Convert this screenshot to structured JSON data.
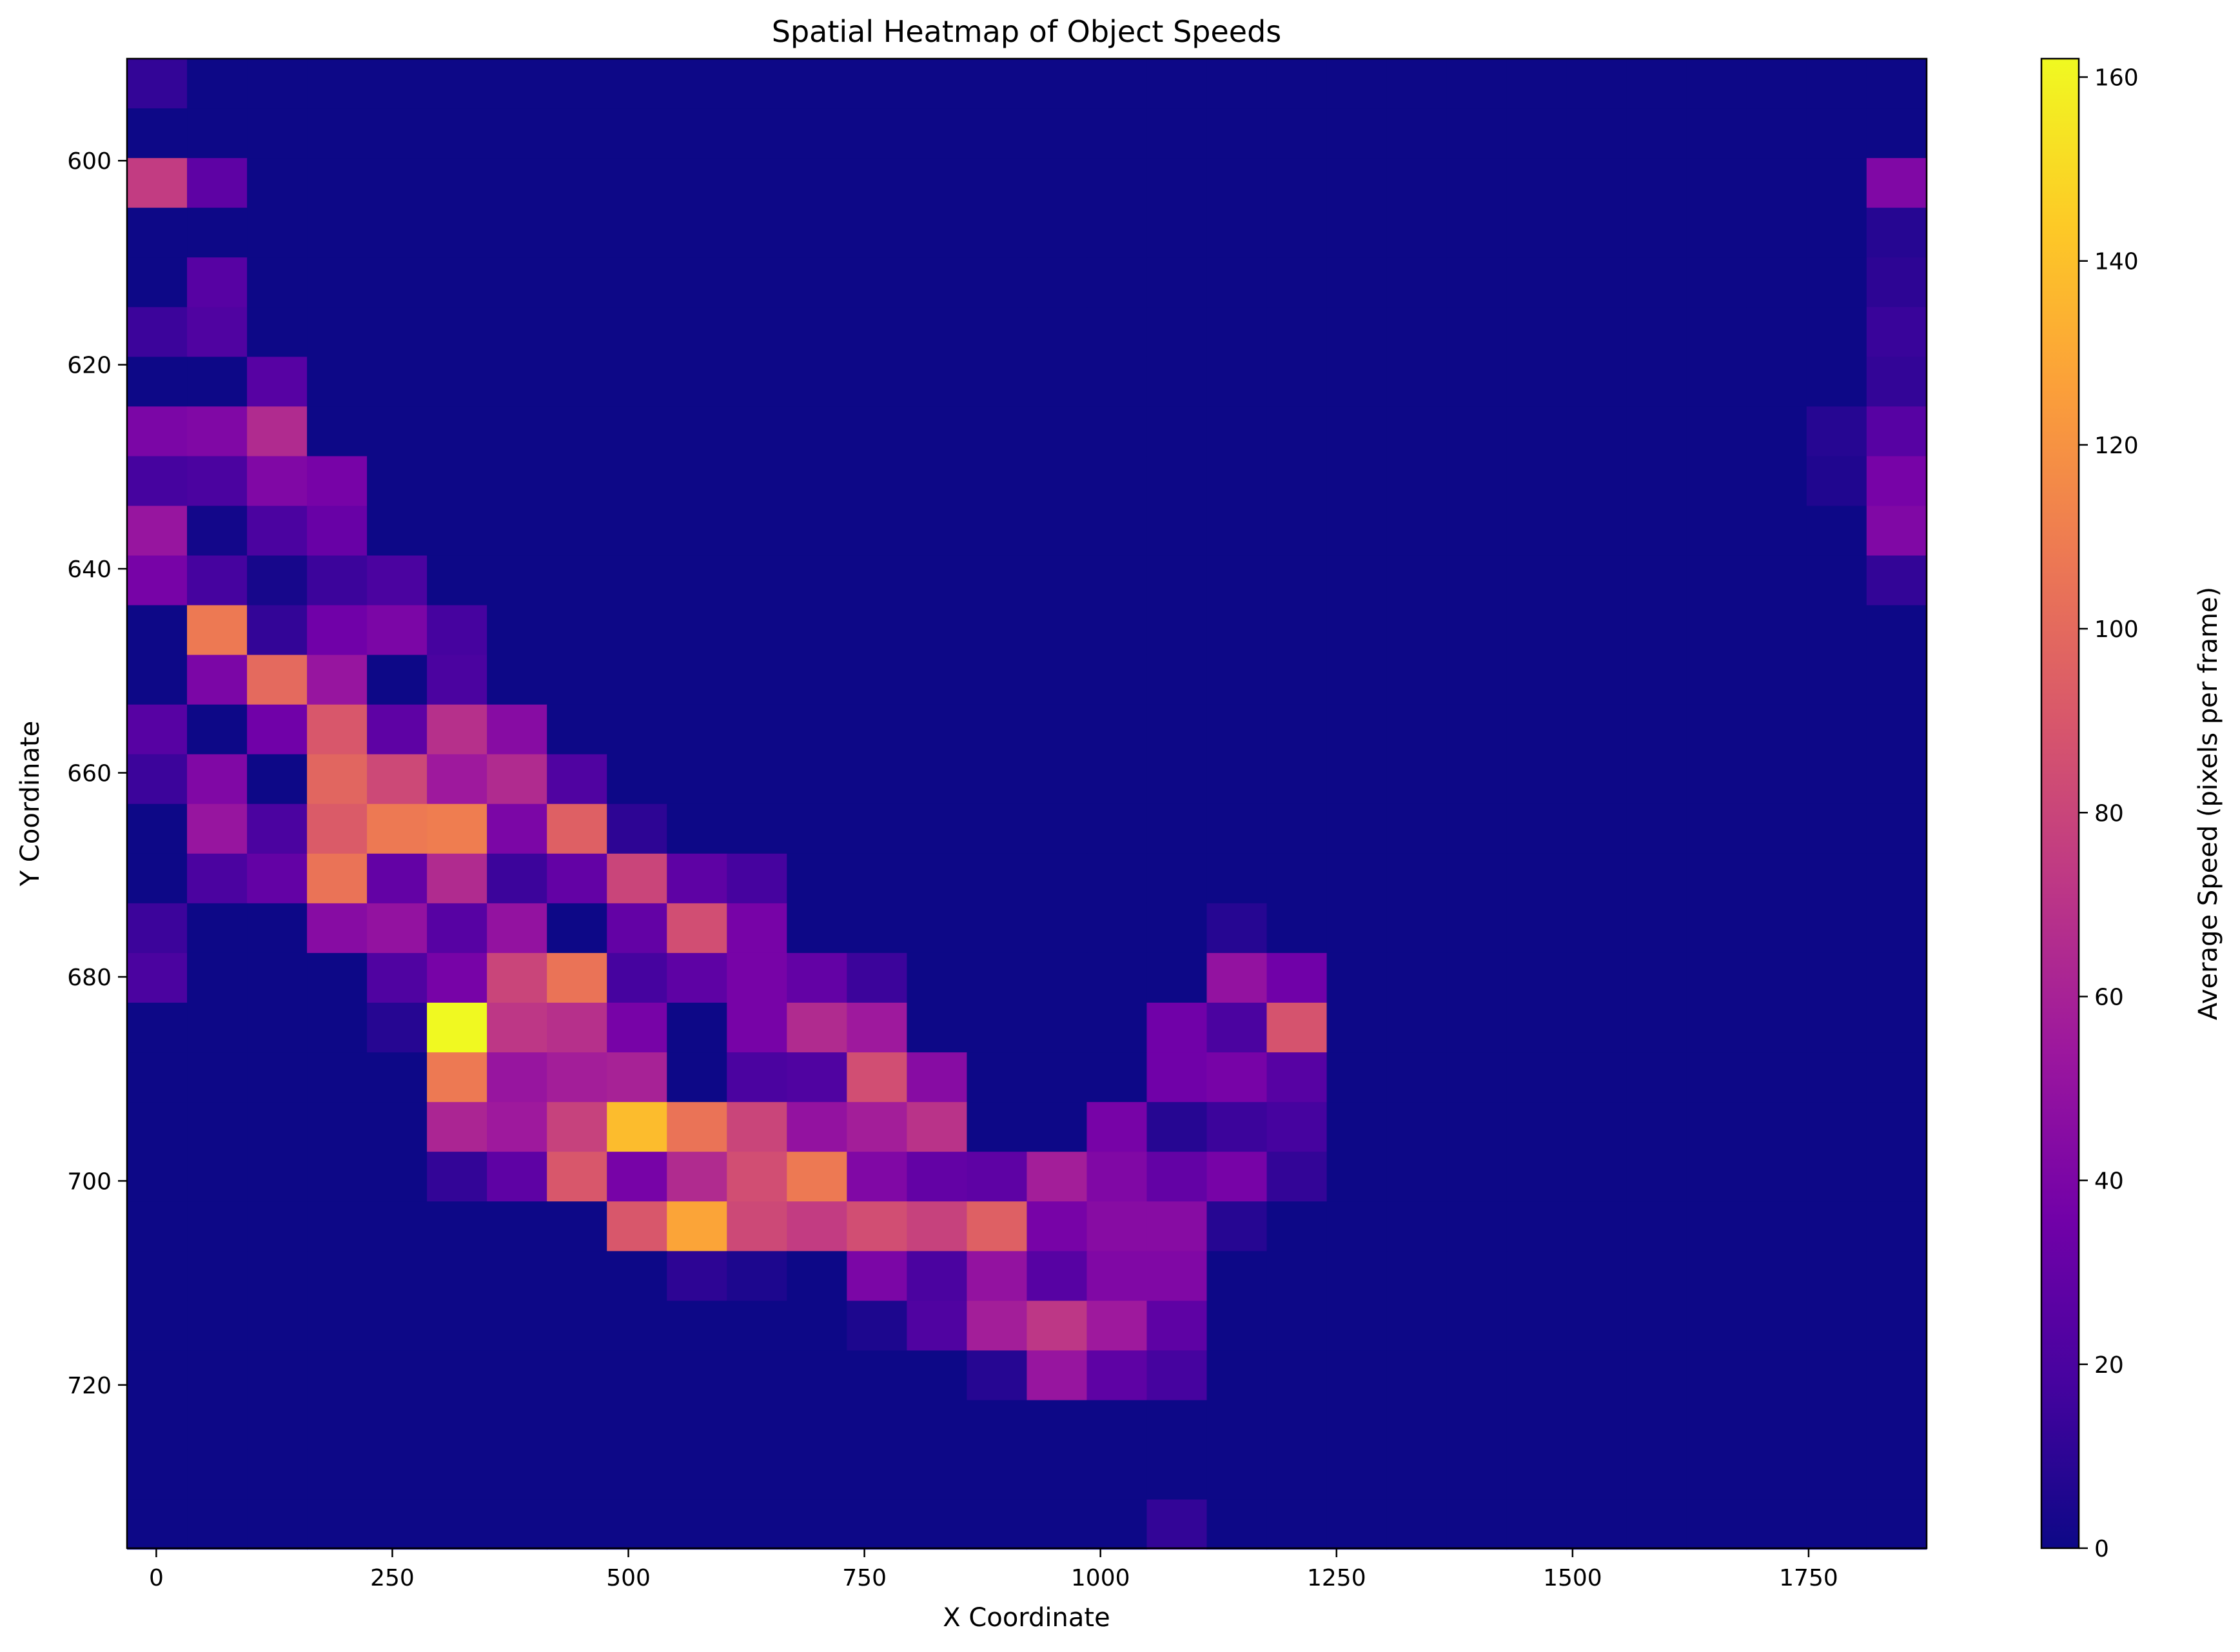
{
  "chart_data": {
    "type": "heatmap",
    "title": "Spatial Heatmap of Object Speeds",
    "xlabel": "X Coordinate",
    "ylabel": "Y Coordinate",
    "colorbar_label": "Average Speed (pixels per frame)",
    "colormap": "plasma",
    "colormap_stops": [
      "#0d0887",
      "#46039f",
      "#7201a8",
      "#9c179e",
      "#bd3786",
      "#d8576b",
      "#ed7953",
      "#fb9f3a",
      "#fdca26",
      "#f0f921"
    ],
    "x_ticks": [
      0,
      250,
      500,
      750,
      1000,
      1250,
      1500,
      1750
    ],
    "y_ticks": [
      600,
      620,
      640,
      660,
      680,
      700,
      720
    ],
    "colorbar_ticks": [
      0,
      20,
      40,
      60,
      80,
      100,
      120,
      140,
      160
    ],
    "xlim": [
      -31,
      1875
    ],
    "ylim": [
      736,
      590
    ],
    "y_inverted": true,
    "value_range": [
      0,
      162
    ],
    "grid": false,
    "x_bin_start": -31,
    "x_bin_width": 63.53,
    "y_bin_start": 590,
    "y_bin_height": 4.87,
    "n_cols": 30,
    "n_rows": 30,
    "cells": [
      [
        0,
        0,
        12
      ],
      [
        0,
        2,
        75
      ],
      [
        1,
        2,
        28
      ],
      [
        29,
        2,
        42
      ],
      [
        29,
        3,
        8
      ],
      [
        1,
        4,
        25
      ],
      [
        29,
        4,
        10
      ],
      [
        0,
        5,
        15
      ],
      [
        1,
        5,
        22
      ],
      [
        29,
        5,
        14
      ],
      [
        2,
        6,
        25
      ],
      [
        29,
        6,
        12
      ],
      [
        0,
        7,
        40
      ],
      [
        1,
        7,
        42
      ],
      [
        2,
        7,
        65
      ],
      [
        28,
        7,
        8
      ],
      [
        29,
        7,
        25
      ],
      [
        0,
        8,
        18
      ],
      [
        1,
        8,
        20
      ],
      [
        2,
        8,
        42
      ],
      [
        3,
        8,
        38
      ],
      [
        28,
        8,
        6
      ],
      [
        29,
        8,
        38
      ],
      [
        0,
        9,
        52
      ],
      [
        1,
        9,
        2
      ],
      [
        2,
        9,
        20
      ],
      [
        3,
        9,
        32
      ],
      [
        29,
        9,
        42
      ],
      [
        0,
        10,
        38
      ],
      [
        1,
        10,
        18
      ],
      [
        2,
        10,
        3
      ],
      [
        3,
        10,
        15
      ],
      [
        4,
        10,
        20
      ],
      [
        29,
        10,
        12
      ],
      [
        1,
        11,
        108
      ],
      [
        2,
        11,
        12
      ],
      [
        3,
        11,
        35
      ],
      [
        4,
        11,
        40
      ],
      [
        5,
        11,
        18
      ],
      [
        1,
        12,
        40
      ],
      [
        2,
        12,
        100
      ],
      [
        3,
        12,
        52
      ],
      [
        5,
        12,
        20
      ],
      [
        0,
        13,
        25
      ],
      [
        2,
        13,
        35
      ],
      [
        3,
        13,
        90
      ],
      [
        4,
        13,
        28
      ],
      [
        5,
        13,
        68
      ],
      [
        6,
        13,
        45
      ],
      [
        0,
        14,
        15
      ],
      [
        1,
        14,
        42
      ],
      [
        3,
        14,
        98
      ],
      [
        4,
        14,
        82
      ],
      [
        5,
        14,
        55
      ],
      [
        6,
        14,
        65
      ],
      [
        7,
        14,
        22
      ],
      [
        1,
        15,
        52
      ],
      [
        2,
        15,
        20
      ],
      [
        3,
        15,
        92
      ],
      [
        4,
        15,
        108
      ],
      [
        5,
        15,
        110
      ],
      [
        6,
        15,
        40
      ],
      [
        7,
        15,
        95
      ],
      [
        8,
        15,
        10
      ],
      [
        1,
        16,
        20
      ],
      [
        2,
        16,
        30
      ],
      [
        3,
        16,
        105
      ],
      [
        4,
        16,
        30
      ],
      [
        5,
        16,
        65
      ],
      [
        6,
        16,
        15
      ],
      [
        7,
        16,
        30
      ],
      [
        8,
        16,
        80
      ],
      [
        9,
        16,
        28
      ],
      [
        10,
        16,
        18
      ],
      [
        0,
        17,
        15
      ],
      [
        3,
        17,
        45
      ],
      [
        4,
        17,
        50
      ],
      [
        5,
        17,
        25
      ],
      [
        6,
        17,
        50
      ],
      [
        8,
        17,
        30
      ],
      [
        9,
        17,
        85
      ],
      [
        10,
        17,
        38
      ],
      [
        18,
        17,
        8
      ],
      [
        0,
        18,
        20
      ],
      [
        4,
        18,
        22
      ],
      [
        5,
        18,
        38
      ],
      [
        6,
        18,
        80
      ],
      [
        7,
        18,
        105
      ],
      [
        8,
        18,
        18
      ],
      [
        9,
        18,
        28
      ],
      [
        10,
        18,
        38
      ],
      [
        11,
        18,
        30
      ],
      [
        12,
        18,
        15
      ],
      [
        18,
        18,
        50
      ],
      [
        19,
        18,
        35
      ],
      [
        4,
        19,
        8
      ],
      [
        5,
        19,
        162
      ],
      [
        6,
        19,
        72
      ],
      [
        7,
        19,
        68
      ],
      [
        8,
        19,
        38
      ],
      [
        10,
        19,
        38
      ],
      [
        11,
        19,
        65
      ],
      [
        12,
        19,
        55
      ],
      [
        17,
        19,
        35
      ],
      [
        18,
        19,
        20
      ],
      [
        19,
        19,
        88
      ],
      [
        5,
        20,
        108
      ],
      [
        6,
        20,
        52
      ],
      [
        7,
        20,
        58
      ],
      [
        8,
        20,
        60
      ],
      [
        10,
        20,
        20
      ],
      [
        11,
        20,
        22
      ],
      [
        12,
        20,
        85
      ],
      [
        13,
        20,
        45
      ],
      [
        17,
        20,
        35
      ],
      [
        18,
        20,
        38
      ],
      [
        19,
        20,
        25
      ],
      [
        5,
        21,
        62
      ],
      [
        6,
        21,
        55
      ],
      [
        7,
        21,
        78
      ],
      [
        8,
        21,
        138
      ],
      [
        9,
        21,
        105
      ],
      [
        10,
        21,
        80
      ],
      [
        11,
        21,
        50
      ],
      [
        12,
        21,
        58
      ],
      [
        13,
        21,
        70
      ],
      [
        16,
        21,
        38
      ],
      [
        17,
        21,
        8
      ],
      [
        18,
        21,
        15
      ],
      [
        19,
        21,
        18
      ],
      [
        5,
        22,
        12
      ],
      [
        6,
        22,
        28
      ],
      [
        7,
        22,
        90
      ],
      [
        8,
        22,
        38
      ],
      [
        9,
        22,
        65
      ],
      [
        10,
        22,
        85
      ],
      [
        11,
        22,
        108
      ],
      [
        12,
        22,
        42
      ],
      [
        13,
        22,
        30
      ],
      [
        14,
        22,
        28
      ],
      [
        15,
        22,
        58
      ],
      [
        16,
        22,
        42
      ],
      [
        17,
        22,
        30
      ],
      [
        18,
        22,
        38
      ],
      [
        19,
        22,
        12
      ],
      [
        8,
        23,
        90
      ],
      [
        9,
        23,
        128
      ],
      [
        10,
        23,
        82
      ],
      [
        11,
        23,
        75
      ],
      [
        12,
        23,
        85
      ],
      [
        13,
        23,
        78
      ],
      [
        14,
        23,
        95
      ],
      [
        15,
        23,
        38
      ],
      [
        16,
        23,
        45
      ],
      [
        17,
        23,
        45
      ],
      [
        18,
        23,
        8
      ],
      [
        9,
        24,
        10
      ],
      [
        10,
        24,
        5
      ],
      [
        12,
        24,
        40
      ],
      [
        13,
        24,
        20
      ],
      [
        14,
        24,
        50
      ],
      [
        15,
        24,
        25
      ],
      [
        16,
        24,
        42
      ],
      [
        17,
        24,
        42
      ],
      [
        12,
        25,
        5
      ],
      [
        13,
        25,
        22
      ],
      [
        14,
        25,
        58
      ],
      [
        15,
        25,
        72
      ],
      [
        16,
        25,
        55
      ],
      [
        17,
        25,
        28
      ],
      [
        14,
        26,
        8
      ],
      [
        15,
        26,
        52
      ],
      [
        16,
        26,
        28
      ],
      [
        17,
        26,
        18
      ],
      [
        17,
        29,
        12
      ]
    ]
  }
}
